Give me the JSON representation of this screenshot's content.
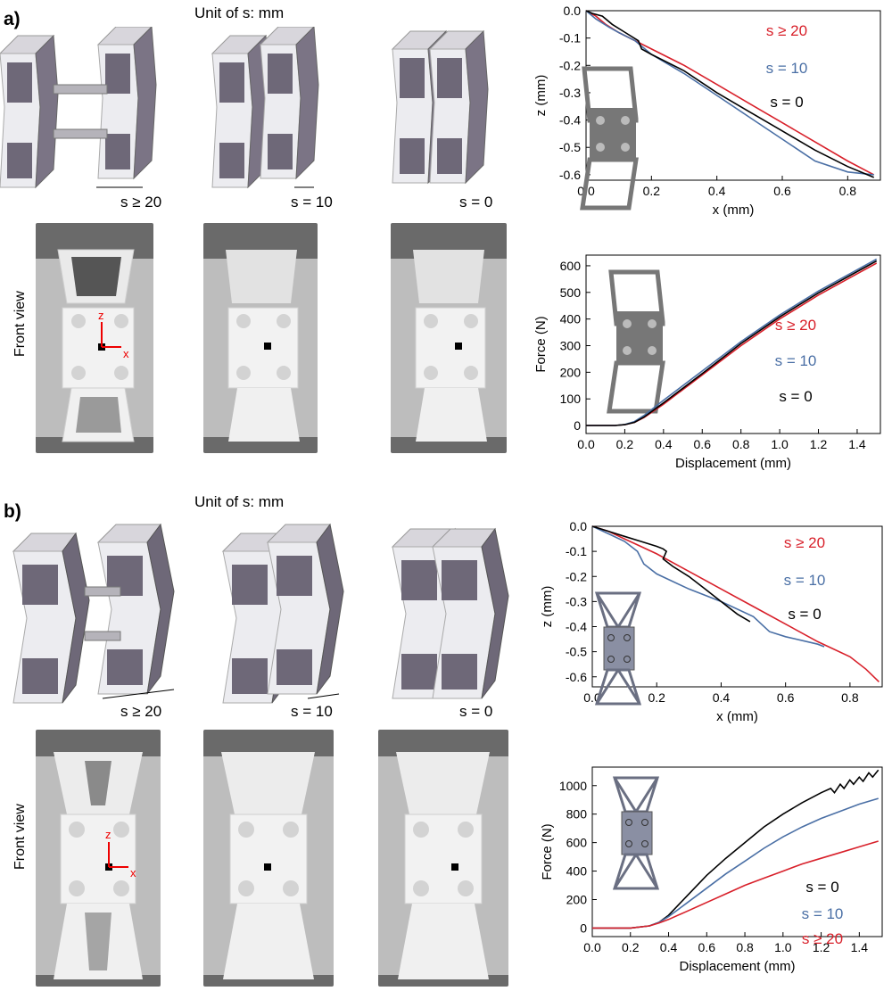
{
  "panels": [
    {
      "label": "a)",
      "unit_note": "Unit of s: mm",
      "s_labels": [
        "s ≥ 20",
        "s = 10",
        "s = 0"
      ],
      "front_view": "Front view",
      "axis_z": "z",
      "axis_x": "x"
    },
    {
      "label": "b)",
      "unit_note": "Unit of s: mm",
      "s_labels": [
        "s ≥ 20",
        "s = 10",
        "s = 0"
      ],
      "front_view": "Front view",
      "axis_z": "z",
      "axis_x": "x"
    }
  ],
  "colors": {
    "s20": "#d8202a",
    "s10": "#4a6fa5",
    "s0": "#000000",
    "cad_dark": "#6e6878",
    "cad_light": "#ececf0"
  },
  "chart_data": [
    {
      "type": "line",
      "xlabel": "x (mm)",
      "ylabel": "z (mm)",
      "xlim": [
        0,
        0.9
      ],
      "ylim": [
        -0.62,
        0
      ],
      "xticks": [
        "0.0",
        "0.2",
        "0.4",
        "0.6",
        "0.8"
      ],
      "yticks": [
        "0.0",
        "-0.1",
        "-0.2",
        "-0.3",
        "-0.4",
        "-0.5",
        "-0.6"
      ],
      "legend": [
        "s ≥ 20",
        "s = 10",
        "s = 0"
      ],
      "series": [
        {
          "name": "s ≥ 20",
          "color": "#d8202a",
          "x": [
            0,
            0.03,
            0.06,
            0.1,
            0.2,
            0.3,
            0.4,
            0.5,
            0.6,
            0.7,
            0.8,
            0.88
          ],
          "y": [
            0,
            -0.02,
            -0.05,
            -0.08,
            -0.14,
            -0.2,
            -0.27,
            -0.34,
            -0.41,
            -0.48,
            -0.55,
            -0.6
          ]
        },
        {
          "name": "s = 10",
          "color": "#4a6fa5",
          "x": [
            0,
            0.03,
            0.07,
            0.1,
            0.15,
            0.2,
            0.3,
            0.4,
            0.5,
            0.6,
            0.7,
            0.8,
            0.88
          ],
          "y": [
            0,
            -0.03,
            -0.06,
            -0.08,
            -0.11,
            -0.16,
            -0.23,
            -0.31,
            -0.39,
            -0.47,
            -0.55,
            -0.59,
            -0.6
          ]
        },
        {
          "name": "s = 0",
          "color": "#000000",
          "x": [
            0,
            0.02,
            0.05,
            0.08,
            0.12,
            0.16,
            0.17,
            0.2,
            0.3,
            0.4,
            0.5,
            0.6,
            0.7,
            0.8,
            0.88
          ],
          "y": [
            0,
            -0.01,
            -0.02,
            -0.05,
            -0.08,
            -0.11,
            -0.14,
            -0.16,
            -0.22,
            -0.3,
            -0.37,
            -0.44,
            -0.51,
            -0.57,
            -0.61
          ]
        }
      ]
    },
    {
      "type": "line",
      "xlabel": "Displacement (mm)",
      "ylabel": "Force (N)",
      "xlim": [
        0,
        1.52
      ],
      "ylim": [
        -30,
        640
      ],
      "xticks": [
        "0.0",
        "0.2",
        "0.4",
        "0.6",
        "0.8",
        "1.0",
        "1.2",
        "1.4"
      ],
      "yticks": [
        "0",
        "100",
        "200",
        "300",
        "400",
        "500",
        "600"
      ],
      "legend": [
        "s ≥ 20",
        "s = 10",
        "s = 0"
      ],
      "series": [
        {
          "name": "s ≥ 20",
          "color": "#d8202a",
          "x": [
            0,
            0.15,
            0.2,
            0.25,
            0.3,
            0.4,
            0.6,
            0.8,
            1.0,
            1.2,
            1.4,
            1.5
          ],
          "y": [
            0,
            0,
            3,
            12,
            30,
            80,
            190,
            300,
            400,
            490,
            570,
            610
          ]
        },
        {
          "name": "s = 10",
          "color": "#4a6fa5",
          "x": [
            0,
            0.15,
            0.2,
            0.25,
            0.3,
            0.4,
            0.6,
            0.8,
            1.0,
            1.2,
            1.4,
            1.5
          ],
          "y": [
            0,
            0,
            4,
            15,
            38,
            95,
            205,
            315,
            415,
            505,
            585,
            625
          ]
        },
        {
          "name": "s = 0",
          "color": "#000000",
          "x": [
            0,
            0.15,
            0.2,
            0.25,
            0.3,
            0.4,
            0.6,
            0.8,
            1.0,
            1.2,
            1.4,
            1.5
          ],
          "y": [
            0,
            0,
            3,
            12,
            32,
            85,
            195,
            308,
            408,
            498,
            578,
            618
          ]
        }
      ]
    },
    {
      "type": "line",
      "xlabel": "x (mm)",
      "ylabel": "z (mm)",
      "xlim": [
        0,
        0.9
      ],
      "ylim": [
        -0.64,
        0
      ],
      "xticks": [
        "0.0",
        "0.2",
        "0.4",
        "0.6",
        "0.8"
      ],
      "yticks": [
        "0.0",
        "-0.1",
        "-0.2",
        "-0.3",
        "-0.4",
        "-0.5",
        "-0.6"
      ],
      "legend": [
        "s ≥ 20",
        "s = 10",
        "s = 0"
      ],
      "series": [
        {
          "name": "s ≥ 20",
          "color": "#d8202a",
          "x": [
            0,
            0.05,
            0.1,
            0.15,
            0.2,
            0.3,
            0.4,
            0.5,
            0.6,
            0.7,
            0.8,
            0.85,
            0.89
          ],
          "y": [
            0,
            -0.02,
            -0.05,
            -0.08,
            -0.11,
            -0.18,
            -0.25,
            -0.32,
            -0.39,
            -0.46,
            -0.52,
            -0.57,
            -0.62
          ]
        },
        {
          "name": "s = 10",
          "color": "#4a6fa5",
          "x": [
            0,
            0.05,
            0.1,
            0.14,
            0.16,
            0.2,
            0.3,
            0.4,
            0.5,
            0.55,
            0.6,
            0.7,
            0.72
          ],
          "y": [
            0,
            -0.03,
            -0.06,
            -0.1,
            -0.15,
            -0.19,
            -0.25,
            -0.3,
            -0.36,
            -0.42,
            -0.44,
            -0.47,
            -0.48
          ]
        },
        {
          "name": "s = 0",
          "color": "#000000",
          "x": [
            0,
            0.05,
            0.1,
            0.15,
            0.2,
            0.22,
            0.23,
            0.22,
            0.25,
            0.3,
            0.35,
            0.4,
            0.45,
            0.49
          ],
          "y": [
            0,
            -0.02,
            -0.04,
            -0.06,
            -0.08,
            -0.09,
            -0.1,
            -0.13,
            -0.16,
            -0.2,
            -0.25,
            -0.3,
            -0.35,
            -0.38
          ]
        }
      ]
    },
    {
      "type": "line",
      "xlabel": "Displacement (mm)",
      "ylabel": "Force (N)",
      "xlim": [
        0,
        1.52
      ],
      "ylim": [
        -60,
        1130
      ],
      "xticks": [
        "0.0",
        "0.2",
        "0.4",
        "0.6",
        "0.8",
        "1.0",
        "1.2",
        "1.4"
      ],
      "yticks": [
        "0",
        "200",
        "400",
        "600",
        "800",
        "1000"
      ],
      "legend": [
        "s = 0",
        "s = 10",
        "s ≥ 20"
      ],
      "series": [
        {
          "name": "s = 0",
          "color": "#000000",
          "x": [
            0,
            0.2,
            0.3,
            0.35,
            0.4,
            0.5,
            0.6,
            0.7,
            0.8,
            0.9,
            1.0,
            1.1,
            1.2,
            1.25,
            1.27,
            1.3,
            1.32,
            1.35,
            1.37,
            1.4,
            1.42,
            1.45,
            1.47,
            1.5
          ],
          "y": [
            0,
            0,
            15,
            40,
            90,
            230,
            370,
            490,
            600,
            710,
            800,
            880,
            950,
            980,
            950,
            1010,
            980,
            1040,
            1010,
            1060,
            1030,
            1090,
            1060,
            1110
          ]
        },
        {
          "name": "s = 10",
          "color": "#4a6fa5",
          "x": [
            0,
            0.2,
            0.3,
            0.35,
            0.4,
            0.5,
            0.6,
            0.7,
            0.8,
            0.9,
            1.0,
            1.1,
            1.2,
            1.3,
            1.4,
            1.5
          ],
          "y": [
            0,
            0,
            15,
            40,
            80,
            180,
            280,
            380,
            470,
            560,
            640,
            710,
            770,
            820,
            870,
            910
          ]
        },
        {
          "name": "s ≥ 20",
          "color": "#d8202a",
          "x": [
            0,
            0.2,
            0.3,
            0.35,
            0.4,
            0.5,
            0.6,
            0.7,
            0.8,
            0.9,
            1.0,
            1.1,
            1.2,
            1.3,
            1.4,
            1.5
          ],
          "y": [
            0,
            0,
            15,
            35,
            60,
            120,
            180,
            240,
            300,
            350,
            400,
            450,
            490,
            530,
            570,
            610
          ]
        }
      ]
    }
  ]
}
